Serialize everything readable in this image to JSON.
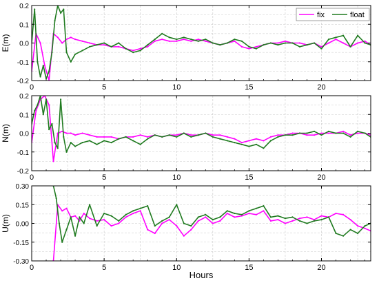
{
  "figure": {
    "xlabel": "Hours",
    "legend": {
      "placement": "top-right",
      "entries": [
        "fix",
        "float"
      ]
    },
    "colors": {
      "fix": "#ff00ff",
      "float": "#1f7a1f",
      "grid": "#c8c8c8",
      "axis": "#000000"
    }
  },
  "chart_data": [
    {
      "type": "line",
      "panel": "E",
      "ylabel": "E(m)",
      "xlim": [
        0,
        23.4
      ],
      "ylim": [
        -0.2,
        0.2
      ],
      "xticks": [
        0,
        5,
        10,
        15,
        20
      ],
      "xtick_labels": [
        "0",
        "5",
        "10",
        "15",
        "20"
      ],
      "yticks": [
        -0.2,
        -0.1,
        0.0,
        0.1,
        0.2
      ],
      "ytick_labels": [
        "-0.2",
        "-0.1",
        "0.0",
        "0.1",
        "0.2"
      ],
      "grid": true,
      "series": [
        {
          "name": "fix",
          "x": [
            0.0,
            0.3,
            0.6,
            0.9,
            1.2,
            1.5,
            1.8,
            2.1,
            2.4,
            2.7,
            3.0,
            3.5,
            4.0,
            4.5,
            5.0,
            5.5,
            6.0,
            6.5,
            7.0,
            7.5,
            8.0,
            8.5,
            9.0,
            9.5,
            10.0,
            10.5,
            11.0,
            11.5,
            12.0,
            12.5,
            13.0,
            13.5,
            14.0,
            14.5,
            15.0,
            15.5,
            16.0,
            16.5,
            17.0,
            17.5,
            18.0,
            18.5,
            19.0,
            19.5,
            20.0,
            20.5,
            21.0,
            21.5,
            22.0,
            22.5,
            23.0,
            23.4
          ],
          "y": [
            -0.15,
            0.05,
            0.0,
            -0.12,
            -0.2,
            0.05,
            0.03,
            0.0,
            0.02,
            0.03,
            0.02,
            0.01,
            0.0,
            -0.01,
            -0.01,
            -0.02,
            -0.02,
            -0.03,
            -0.04,
            -0.03,
            -0.02,
            0.01,
            0.02,
            0.01,
            0.01,
            0.02,
            0.01,
            0.02,
            0.01,
            0.0,
            -0.01,
            0.0,
            0.01,
            -0.02,
            -0.03,
            -0.02,
            -0.01,
            0.0,
            0.0,
            0.01,
            0.0,
            0.0,
            -0.01,
            0.0,
            -0.02,
            0.0,
            0.02,
            0.0,
            -0.02,
            0.0,
            0.01,
            -0.01
          ]
        },
        {
          "name": "float",
          "x": [
            0.0,
            0.2,
            0.4,
            0.6,
            0.8,
            1.0,
            1.2,
            1.4,
            1.6,
            1.8,
            2.0,
            2.2,
            2.4,
            2.7,
            3.0,
            3.5,
            4.0,
            4.5,
            5.0,
            5.5,
            6.0,
            6.5,
            7.0,
            7.5,
            8.0,
            8.5,
            9.0,
            9.5,
            10.0,
            10.5,
            11.0,
            11.5,
            12.0,
            12.5,
            13.0,
            13.5,
            14.0,
            14.5,
            15.0,
            15.5,
            16.0,
            16.5,
            17.0,
            17.5,
            18.0,
            18.5,
            19.0,
            19.5,
            20.0,
            20.5,
            21.0,
            21.5,
            22.0,
            22.5,
            23.0,
            23.4
          ],
          "y": [
            0.0,
            0.18,
            -0.1,
            -0.18,
            -0.12,
            -0.19,
            -0.15,
            -0.05,
            0.12,
            0.2,
            0.16,
            0.18,
            -0.05,
            -0.1,
            -0.06,
            -0.04,
            -0.02,
            -0.01,
            0.0,
            -0.02,
            0.0,
            -0.03,
            -0.05,
            -0.04,
            -0.01,
            0.02,
            0.05,
            0.03,
            0.02,
            0.03,
            0.02,
            0.01,
            0.02,
            0.0,
            -0.01,
            0.0,
            0.02,
            0.01,
            -0.02,
            -0.03,
            -0.01,
            0.0,
            -0.01,
            0.0,
            0.0,
            -0.02,
            -0.01,
            0.0,
            -0.03,
            0.02,
            0.03,
            0.04,
            -0.02,
            0.04,
            0.0,
            -0.01
          ]
        }
      ]
    },
    {
      "type": "line",
      "panel": "N",
      "ylabel": "N(m)",
      "xlim": [
        0,
        23.4
      ],
      "ylim": [
        -0.2,
        0.2
      ],
      "xticks": [
        0,
        5,
        10,
        15,
        20
      ],
      "xtick_labels": [
        "0",
        "5",
        "10",
        "15",
        "20"
      ],
      "yticks": [
        -0.2,
        -0.1,
        0.0,
        0.1,
        0.2
      ],
      "ytick_labels": [
        "-0.2",
        "-0.1",
        "0.0",
        "0.1",
        "0.2"
      ],
      "grid": true,
      "series": [
        {
          "name": "fix",
          "x": [
            0.0,
            0.3,
            0.6,
            0.9,
            1.2,
            1.5,
            1.8,
            2.1,
            2.4,
            2.7,
            3.0,
            3.5,
            4.0,
            4.5,
            5.0,
            5.5,
            6.0,
            6.5,
            7.0,
            7.5,
            8.0,
            8.5,
            9.0,
            9.5,
            10.0,
            10.5,
            11.0,
            11.5,
            12.0,
            12.5,
            13.0,
            13.5,
            14.0,
            14.5,
            15.0,
            15.5,
            16.0,
            16.5,
            17.0,
            17.5,
            18.0,
            18.5,
            19.0,
            19.5,
            20.0,
            20.5,
            21.0,
            21.5,
            22.0,
            22.5,
            23.0,
            23.4
          ],
          "y": [
            -0.05,
            0.12,
            0.18,
            0.2,
            0.15,
            -0.15,
            0.0,
            0.01,
            0.0,
            0.0,
            -0.01,
            0.0,
            -0.01,
            -0.02,
            -0.02,
            -0.02,
            -0.03,
            -0.02,
            -0.02,
            -0.01,
            -0.02,
            -0.01,
            -0.02,
            -0.01,
            -0.01,
            0.0,
            -0.01,
            -0.01,
            0.0,
            -0.01,
            -0.01,
            -0.02,
            -0.03,
            -0.05,
            -0.04,
            -0.03,
            -0.04,
            -0.02,
            -0.01,
            -0.01,
            0.0,
            0.0,
            -0.01,
            -0.01,
            0.0,
            0.0,
            0.0,
            0.01,
            -0.01,
            0.0,
            0.0,
            -0.01
          ]
        },
        {
          "name": "float",
          "x": [
            0.0,
            0.2,
            0.4,
            0.6,
            0.8,
            1.0,
            1.2,
            1.4,
            1.6,
            1.8,
            2.0,
            2.2,
            2.4,
            2.7,
            3.0,
            3.5,
            4.0,
            4.5,
            5.0,
            5.5,
            6.0,
            6.5,
            7.0,
            7.5,
            8.0,
            8.5,
            9.0,
            9.5,
            10.0,
            10.5,
            11.0,
            11.5,
            12.0,
            12.5,
            13.0,
            13.5,
            14.0,
            14.5,
            15.0,
            15.5,
            16.0,
            16.5,
            17.0,
            17.5,
            18.0,
            18.5,
            19.0,
            19.5,
            20.0,
            20.5,
            21.0,
            21.5,
            22.0,
            22.5,
            23.0,
            23.4
          ],
          "y": [
            0.05,
            0.12,
            0.15,
            0.2,
            0.1,
            0.18,
            0.02,
            0.05,
            -0.05,
            -0.08,
            0.18,
            -0.02,
            -0.1,
            -0.05,
            -0.07,
            -0.05,
            -0.04,
            -0.06,
            -0.04,
            -0.05,
            -0.03,
            -0.02,
            -0.04,
            -0.06,
            -0.03,
            -0.01,
            -0.02,
            -0.01,
            -0.02,
            0.0,
            -0.02,
            -0.01,
            0.0,
            -0.02,
            -0.03,
            -0.04,
            -0.05,
            -0.06,
            -0.07,
            -0.06,
            -0.08,
            -0.04,
            -0.02,
            -0.01,
            -0.01,
            0.0,
            0.0,
            0.01,
            -0.01,
            0.01,
            0.0,
            0.0,
            -0.02,
            0.01,
            0.0,
            -0.02
          ]
        }
      ]
    },
    {
      "type": "line",
      "panel": "U",
      "ylabel": "U(m)",
      "xlim": [
        0,
        23.4
      ],
      "ylim": [
        -0.3,
        0.3
      ],
      "xticks": [
        0,
        5,
        10,
        15,
        20
      ],
      "xtick_labels": [
        "0",
        "5",
        "10",
        "15",
        "20"
      ],
      "yticks": [
        -0.3,
        -0.15,
        0.0,
        0.15,
        0.3
      ],
      "ytick_labels": [
        "-0.30",
        "-0.15",
        "0.00",
        "0.15",
        "0.30"
      ],
      "grid": true,
      "series": [
        {
          "name": "fix",
          "x": [
            1.5,
            1.8,
            2.1,
            2.4,
            2.7,
            3.0,
            3.3,
            3.6,
            4.0,
            4.5,
            5.0,
            5.5,
            6.0,
            6.5,
            7.0,
            7.5,
            8.0,
            8.5,
            9.0,
            9.5,
            10.0,
            10.5,
            11.0,
            11.5,
            12.0,
            12.5,
            13.0,
            13.5,
            14.0,
            14.5,
            15.0,
            15.5,
            16.0,
            16.5,
            17.0,
            17.5,
            18.0,
            18.5,
            19.0,
            19.5,
            20.0,
            20.5,
            21.0,
            21.5,
            22.0,
            22.5,
            23.0,
            23.4
          ],
          "y": [
            -0.3,
            0.15,
            0.1,
            0.12,
            0.05,
            0.06,
            0.02,
            0.08,
            0.04,
            0.02,
            0.03,
            -0.02,
            0.0,
            0.05,
            0.08,
            0.1,
            -0.05,
            -0.08,
            0.0,
            0.03,
            -0.02,
            -0.1,
            -0.05,
            0.02,
            0.05,
            0.0,
            0.02,
            0.08,
            0.05,
            0.06,
            0.08,
            0.07,
            0.1,
            0.02,
            0.03,
            0.0,
            0.02,
            0.04,
            0.05,
            0.03,
            0.06,
            0.05,
            0.08,
            0.07,
            0.03,
            -0.02,
            -0.04,
            -0.06
          ]
        },
        {
          "name": "float",
          "x": [
            1.5,
            1.7,
            1.9,
            2.1,
            2.4,
            2.7,
            3.0,
            3.3,
            3.6,
            4.0,
            4.5,
            5.0,
            5.5,
            6.0,
            6.5,
            7.0,
            7.5,
            8.0,
            8.5,
            9.0,
            9.5,
            10.0,
            10.5,
            11.0,
            11.5,
            12.0,
            12.5,
            13.0,
            13.5,
            14.0,
            14.5,
            15.0,
            15.5,
            16.0,
            16.5,
            17.0,
            17.5,
            18.0,
            18.5,
            19.0,
            19.5,
            20.0,
            20.5,
            21.0,
            21.5,
            22.0,
            22.5,
            23.0,
            23.4
          ],
          "y": [
            0.3,
            0.2,
            0.0,
            -0.15,
            -0.05,
            0.05,
            -0.1,
            0.05,
            0.0,
            0.15,
            -0.02,
            0.08,
            0.06,
            0.02,
            0.07,
            0.1,
            0.12,
            0.14,
            -0.02,
            0.02,
            0.05,
            0.15,
            0.0,
            -0.02,
            0.05,
            0.07,
            0.03,
            0.05,
            0.1,
            0.08,
            0.07,
            0.1,
            0.12,
            0.14,
            0.05,
            0.06,
            0.04,
            0.05,
            0.02,
            0.0,
            0.02,
            0.03,
            0.05,
            -0.08,
            -0.1,
            -0.05,
            -0.08,
            -0.02,
            0.0
          ]
        }
      ]
    }
  ]
}
